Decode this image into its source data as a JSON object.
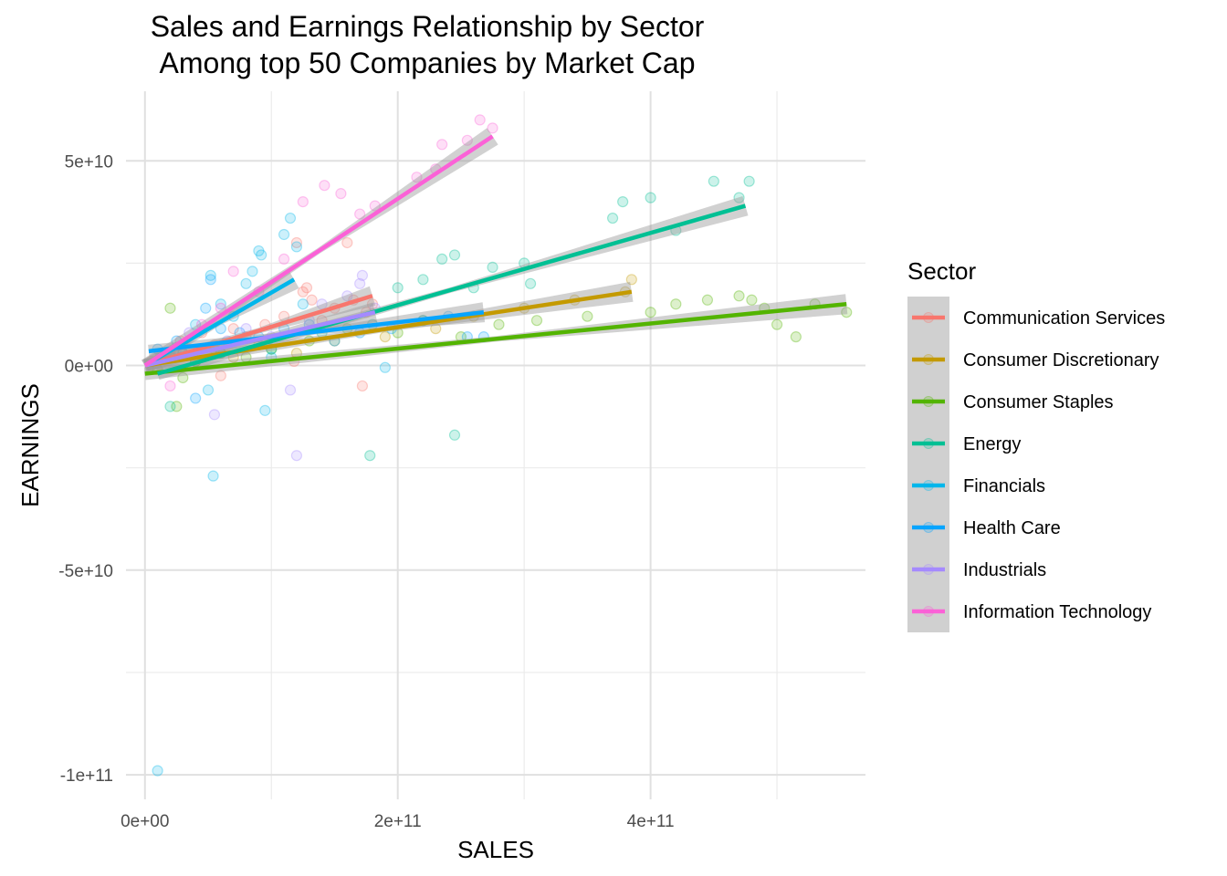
{
  "chart_data": {
    "type": "scatter",
    "title": "Sales and Earnings Relationship by Sector",
    "subtitle": "Among top 50 Companies by Market Cap",
    "xlabel": "SALES",
    "ylabel": "EARNINGS",
    "xlim": [
      -15000000000,
      570000000000
    ],
    "ylim": [
      -106000000000,
      67000000000
    ],
    "x_ticks": [
      0,
      200000000000,
      400000000000
    ],
    "x_tick_labels": [
      "0e+00",
      "2e+11",
      "4e+11"
    ],
    "x_minor": [
      100000000000,
      300000000000,
      500000000000
    ],
    "y_ticks": [
      50000000000,
      0,
      -50000000000,
      -100000000000
    ],
    "y_tick_labels": [
      "5e+10",
      "0e+00",
      "-5e+10",
      "-1e+11"
    ],
    "y_minor": [
      25000000000,
      -25000000000,
      -75000000000
    ],
    "grid": true,
    "legend_title": "Sector",
    "legend_position": "right",
    "series": [
      {
        "name": "Communication Services",
        "color": "#F8766D",
        "fit": {
          "x": [
            0,
            180000000000
          ],
          "y": [
            0,
            17000000000
          ]
        },
        "points": [
          [
            5000000000.0,
            1000000000.0
          ],
          [
            12000000000.0,
            2000000000.0
          ],
          [
            20000000000.0,
            3000000000.0
          ],
          [
            28000000000.0,
            6000000000.0
          ],
          [
            35000000000.0,
            4000000000.0
          ],
          [
            45000000000.0,
            8000000000.0
          ],
          [
            55000000000.0,
            5000000000.0
          ],
          [
            60000000000.0,
            -2500000000.0
          ],
          [
            70000000000.0,
            9000000000.0
          ],
          [
            80000000000.0,
            7000000000.0
          ],
          [
            95000000000.0,
            10000000000.0
          ],
          [
            110000000000.0,
            12000000000.0
          ],
          [
            118000000000.0,
            1000000000.0
          ],
          [
            125000000000.0,
            18000000000.0
          ],
          [
            128000000000.0,
            19000000000.0
          ],
          [
            132000000000.0,
            16000000000.0
          ],
          [
            140000000000.0,
            11000000000.0
          ],
          [
            150000000000.0,
            14000000000.0
          ],
          [
            160000000000.0,
            30000000000.0
          ],
          [
            165000000000.0,
            16000000000.0
          ],
          [
            172000000000.0,
            -5000000000.0
          ],
          [
            175000000000.0,
            13000000000.0
          ],
          [
            180000000000.0,
            15000000000.0
          ],
          [
            120000000000.0,
            30000000000.0
          ]
        ]
      },
      {
        "name": "Consumer Discretionary",
        "color": "#C49A00",
        "fit": {
          "x": [
            0,
            385000000000
          ],
          "y": [
            0,
            18000000000
          ]
        },
        "points": [
          [
            5000000000.0,
            0
          ],
          [
            10000000000.0,
            1000000000.0
          ],
          [
            20000000000.0,
            2000000000.0
          ],
          [
            30000000000.0,
            3000000000.0
          ],
          [
            40000000000.0,
            1000000000.0
          ],
          [
            55000000000.0,
            4000000000.0
          ],
          [
            70000000000.0,
            2000000000.0
          ],
          [
            90000000000.0,
            5000000000.0
          ],
          [
            120000000000.0,
            3000000000.0
          ],
          [
            150000000000.0,
            6000000000.0
          ],
          [
            190000000000.0,
            7000000000.0
          ],
          [
            230000000000.0,
            9000000000.0
          ],
          [
            260000000000.0,
            12000000000.0
          ],
          [
            300000000000.0,
            14000000000.0
          ],
          [
            340000000000.0,
            16000000000.0
          ],
          [
            385000000000.0,
            21000000000.0
          ],
          [
            380000000000.0,
            18000000000.0
          ]
        ]
      },
      {
        "name": "Consumer Staples",
        "color": "#53B400",
        "fit": {
          "x": [
            0,
            555000000000
          ],
          "y": [
            -2000000000,
            15000000000
          ]
        },
        "points": [
          [
            10000000000.0,
            -1000000000.0
          ],
          [
            20000000000.0,
            14000000000.0
          ],
          [
            25000000000.0,
            -10000000000.0
          ],
          [
            30000000000.0,
            -3000000000.0
          ],
          [
            40000000000.0,
            1000000000.0
          ],
          [
            60000000000.0,
            3000000000.0
          ],
          [
            80000000000.0,
            2000000000.0
          ],
          [
            100000000000.0,
            4000000000.0
          ],
          [
            130000000000.0,
            6000000000.0
          ],
          [
            160000000000.0,
            9000000000.0
          ],
          [
            200000000000.0,
            8000000000.0
          ],
          [
            220000000000.0,
            11000000000.0
          ],
          [
            250000000000.0,
            7000000000.0
          ],
          [
            280000000000.0,
            10000000000.0
          ],
          [
            310000000000.0,
            11000000000.0
          ],
          [
            350000000000.0,
            12000000000.0
          ],
          [
            400000000000.0,
            13000000000.0
          ],
          [
            420000000000.0,
            15000000000.0
          ],
          [
            445000000000.0,
            16000000000.0
          ],
          [
            470000000000.0,
            17000000000.0
          ],
          [
            480000000000.0,
            16000000000.0
          ],
          [
            490000000000.0,
            14000000000.0
          ],
          [
            500000000000.0,
            10000000000.0
          ],
          [
            515000000000.0,
            7000000000.0
          ],
          [
            530000000000.0,
            15000000000.0
          ],
          [
            555000000000.0,
            13000000000.0
          ]
        ]
      },
      {
        "name": "Energy",
        "color": "#00C094",
        "fit": {
          "x": [
            10000000000,
            475000000000
          ],
          "y": [
            -2000000000,
            39000000000
          ]
        },
        "points": [
          [
            20000000000.0,
            -10000000000.0
          ],
          [
            40000000000.0,
            1000000000.0
          ],
          [
            60000000000.0,
            3000000000.0
          ],
          [
            100000000000.0,
            4000000000.0
          ],
          [
            140000000000.0,
            8000000000.0
          ],
          [
            178000000000.0,
            -22000000000.0
          ],
          [
            180000000000.0,
            10000000000.0
          ],
          [
            200000000000.0,
            19000000000.0
          ],
          [
            220000000000.0,
            21000000000.0
          ],
          [
            235000000000.0,
            26000000000.0
          ],
          [
            245000000000.0,
            -17000000000.0
          ],
          [
            245000000000.0,
            27000000000.0
          ],
          [
            260000000000.0,
            19000000000.0
          ],
          [
            275000000000.0,
            24000000000.0
          ],
          [
            300000000000.0,
            25000000000.0
          ],
          [
            305000000000.0,
            20000000000.0
          ],
          [
            370000000000.0,
            36000000000.0
          ],
          [
            378000000000.0,
            40000000000.0
          ],
          [
            400000000000.0,
            41000000000.0
          ],
          [
            420000000000.0,
            33000000000.0
          ],
          [
            450000000000.0,
            45000000000.0
          ],
          [
            470000000000.0,
            41000000000.0
          ],
          [
            478000000000.0,
            45000000000.0
          ]
        ]
      },
      {
        "name": "Financials",
        "color": "#00B6EB",
        "fit": {
          "x": [
            0,
            118000000000
          ],
          "y": [
            0,
            21000000000
          ]
        },
        "points": [
          [
            10000000000.0,
            -99000000000.0
          ],
          [
            30000000000.0,
            3000000000.0
          ],
          [
            40000000000.0,
            10000000000.0
          ],
          [
            50000000000.0,
            -6000000000.0
          ],
          [
            52000000000.0,
            22000000000.0
          ],
          [
            54000000000.0,
            -27000000000.0
          ],
          [
            60000000000.0,
            15000000000.0
          ],
          [
            70000000000.0,
            12000000000.0
          ],
          [
            80000000000.0,
            20000000000.0
          ],
          [
            85000000000.0,
            23000000000.0
          ],
          [
            90000000000.0,
            28000000000.0
          ],
          [
            92000000000.0,
            27000000000.0
          ],
          [
            95000000000.0,
            -11000000000.0
          ],
          [
            100000000000.0,
            2000000000.0
          ],
          [
            110000000000.0,
            32000000000.0
          ],
          [
            115000000000.0,
            36000000000.0
          ],
          [
            120000000000.0,
            29000000000.0
          ],
          [
            125000000000.0,
            15000000000.0
          ],
          [
            190000000000.0,
            -500000000.0
          ]
        ]
      },
      {
        "name": "Health Care",
        "color": "#06A4FF",
        "fit": {
          "x": [
            3000000000,
            268000000000
          ],
          "y": [
            3500000000,
            13000000000
          ]
        },
        "points": [
          [
            10000000000.0,
            4000000000.0
          ],
          [
            25000000000.0,
            6000000000.0
          ],
          [
            40000000000.0,
            -8000000000.0
          ],
          [
            48000000000.0,
            14000000000.0
          ],
          [
            52000000000.0,
            21000000000.0
          ],
          [
            60000000000.0,
            9000000000.0
          ],
          [
            75000000000.0,
            8000000000.0
          ],
          [
            90000000000.0,
            7000000000.0
          ],
          [
            110000000000.0,
            9000000000.0
          ],
          [
            130000000000.0,
            10000000000.0
          ],
          [
            150000000000.0,
            6000000000.0
          ],
          [
            170000000000.0,
            8000000000.0
          ],
          [
            195000000000.0,
            9000000000.0
          ],
          [
            220000000000.0,
            11000000000.0
          ],
          [
            240000000000.0,
            12000000000.0
          ],
          [
            255000000000.0,
            7000000000.0
          ],
          [
            268000000000.0,
            7000000000.0
          ]
        ]
      },
      {
        "name": "Industrials",
        "color": "#A58AFF",
        "fit": {
          "x": [
            0,
            182000000000
          ],
          "y": [
            0,
            13000000000
          ]
        },
        "points": [
          [
            10000000000.0,
            1000000000.0
          ],
          [
            25000000000.0,
            4000000000.0
          ],
          [
            35000000000.0,
            8000000000.0
          ],
          [
            55000000000.0,
            -12000000000.0
          ],
          [
            65000000000.0,
            6000000000.0
          ],
          [
            80000000000.0,
            9000000000.0
          ],
          [
            100000000000.0,
            7000000000.0
          ],
          [
            115000000000.0,
            -6000000000.0
          ],
          [
            120000000000.0,
            -22000000000.0
          ],
          [
            130000000000.0,
            11000000000.0
          ],
          [
            140000000000.0,
            15000000000.0
          ],
          [
            160000000000.0,
            17000000000.0
          ],
          [
            170000000000.0,
            20000000000.0
          ],
          [
            172000000000.0,
            22000000000.0
          ],
          [
            182000000000.0,
            14000000000.0
          ]
        ]
      },
      {
        "name": "Information Technology",
        "color": "#FB61D7",
        "fit": {
          "x": [
            0,
            275000000000
          ],
          "y": [
            0,
            56000000000
          ]
        },
        "points": [
          [
            10000000000.0,
            1000000000.0
          ],
          [
            20000000000.0,
            -5000000000.0
          ],
          [
            30000000000.0,
            5000000000.0
          ],
          [
            45000000000.0,
            10000000000.0
          ],
          [
            60000000000.0,
            14000000000.0
          ],
          [
            70000000000.0,
            23000000000.0
          ],
          [
            90000000000.0,
            18000000000.0
          ],
          [
            110000000000.0,
            26000000000.0
          ],
          [
            125000000000.0,
            40000000000.0
          ],
          [
            142000000000.0,
            44000000000.0
          ],
          [
            155000000000.0,
            42000000000.0
          ],
          [
            170000000000.0,
            37000000000.0
          ],
          [
            182000000000.0,
            39000000000.0
          ],
          [
            215000000000.0,
            46000000000.0
          ],
          [
            230000000000.0,
            48000000000.0
          ],
          [
            235000000000.0,
            54000000000.0
          ],
          [
            255000000000.0,
            55000000000.0
          ],
          [
            265000000000.0,
            60000000000.0
          ],
          [
            275000000000.0,
            58000000000.0
          ]
        ]
      }
    ]
  }
}
